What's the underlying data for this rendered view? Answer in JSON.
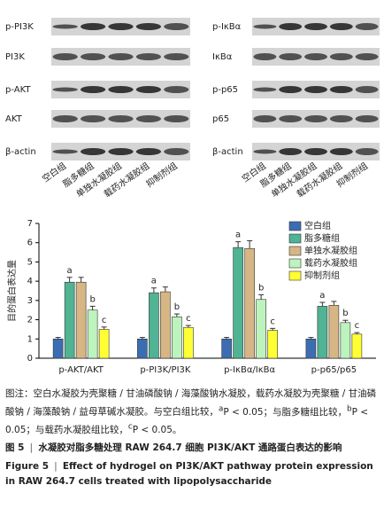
{
  "blots": {
    "left": {
      "labels": [
        "p-PI3K",
        "PI3K",
        "p-AKT",
        "AKT",
        "β-actin"
      ]
    },
    "right": {
      "labels": [
        "p-IκBα",
        "IκBα",
        "p-p65",
        "p65",
        "β-actin"
      ]
    },
    "groups": [
      "空白组",
      "脂多糖组",
      "单独水凝胶组",
      "载药水凝胶组",
      "抑制剂组"
    ]
  },
  "chart_data": {
    "type": "bar",
    "ylabel": "目的蛋白表达量",
    "categories": [
      "p-AKT/AKT",
      "p-PI3K/PI3K",
      "p-IκBα/IκBα",
      "p-p65/p65"
    ],
    "ylim": [
      0,
      7
    ],
    "yticks": [
      0,
      1,
      2,
      3,
      4,
      5,
      6,
      7
    ],
    "legend": "top-right",
    "series": [
      {
        "name": "空白组",
        "color": "#3b6db3",
        "values": [
          1.0,
          1.0,
          1.0,
          1.0
        ],
        "errors": [
          0.08,
          0.08,
          0.08,
          0.08
        ]
      },
      {
        "name": "脂多糖组",
        "color": "#4fb394",
        "values": [
          3.95,
          3.4,
          5.75,
          2.7
        ],
        "errors": [
          0.25,
          0.25,
          0.3,
          0.2
        ],
        "letters": [
          "a",
          "a",
          "a",
          "a"
        ]
      },
      {
        "name": "单独水凝胶组",
        "color": "#d6b684",
        "values": [
          3.95,
          3.45,
          5.7,
          2.75
        ],
        "errors": [
          0.25,
          0.25,
          0.4,
          0.2
        ]
      },
      {
        "name": "载药水凝胶组",
        "color": "#bdf3bd",
        "values": [
          2.5,
          2.15,
          3.05,
          1.85
        ],
        "errors": [
          0.2,
          0.15,
          0.25,
          0.12
        ],
        "letters": [
          "b",
          "b",
          "b",
          "b"
        ]
      },
      {
        "name": "抑制剂组",
        "color": "#ffff33",
        "values": [
          1.5,
          1.6,
          1.45,
          1.25
        ],
        "errors": [
          0.12,
          0.1,
          0.1,
          0.08
        ],
        "letters": [
          "c",
          "c",
          "c",
          "c"
        ]
      }
    ]
  },
  "caption": {
    "note": "图注：空白水凝胶为壳聚糖 / 甘油磷酸钠 / 海藻酸钠水凝胶，载药水凝胶为壳聚糖 / 甘油磷酸钠 / 海藻酸钠 / 益母草碱水凝胶。与空白组比较，",
    "significance": [
      {
        "sup": "a",
        "text": "P < 0.05；与脂多糖组比较，"
      },
      {
        "sup": "b",
        "text": "P < 0.05；与载药水凝胶组比较，"
      },
      {
        "sup": "c",
        "text": "P < 0.05。"
      }
    ],
    "cn_label": "图 5",
    "cn_title": "水凝胶对脂多糖处理 RAW 264.7 细胞 PI3K/AKT 通路蛋白表达的影响",
    "en_label": "Figure 5",
    "en_title": "Effect of hydrogel on PI3K/AKT pathway protein expression in RAW 264.7 cells treated with lipopolysaccharide"
  }
}
